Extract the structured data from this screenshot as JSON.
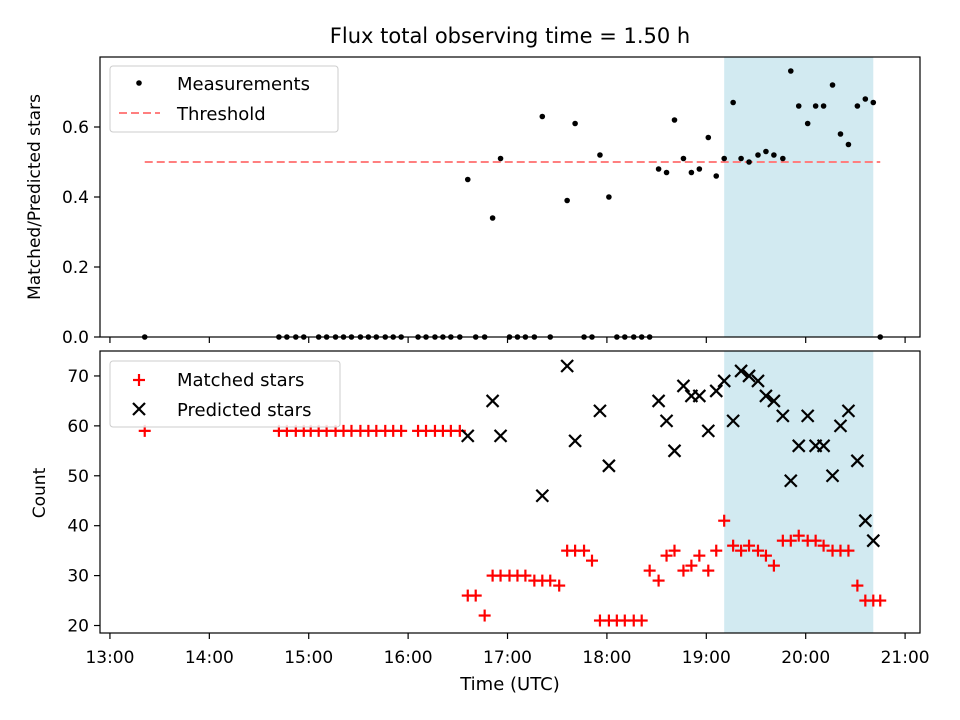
{
  "chart_data": [
    {
      "type": "scatter",
      "title": "Flux total observing time = 1.50 h",
      "xlabel": "",
      "ylabel": "Matched/Predicted stars",
      "x_unit": "hours UTC",
      "xlim": [
        12.9,
        21.15
      ],
      "ylim": [
        0,
        0.8
      ],
      "yticks": [
        0.0,
        0.2,
        0.4,
        0.6
      ],
      "ytick_labels": [
        "0.0",
        "0.2",
        "0.4",
        "0.6"
      ],
      "shaded_region": {
        "x": [
          19.18,
          20.68
        ],
        "color": "#add8e6"
      },
      "legend": {
        "placement": "upper-left",
        "entries": [
          "Measurements",
          "Threshold"
        ]
      },
      "threshold": {
        "name": "Threshold",
        "y": 0.5,
        "x": [
          13.35,
          20.75
        ],
        "color": "#ff7f7f",
        "style": "dashed"
      },
      "series": [
        {
          "name": "Measurements",
          "color": "#000000",
          "marker": "dot",
          "x": [
            13.35,
            14.7,
            14.78,
            14.87,
            14.95,
            15.1,
            15.18,
            15.27,
            15.35,
            15.43,
            15.52,
            15.6,
            15.68,
            15.77,
            15.85,
            15.93,
            16.1,
            16.18,
            16.27,
            16.35,
            16.43,
            16.52,
            16.6,
            16.68,
            16.77,
            16.85,
            16.93,
            17.02,
            17.1,
            17.18,
            17.27,
            17.35,
            17.43,
            17.6,
            17.68,
            17.77,
            17.85,
            17.93,
            18.02,
            18.1,
            18.18,
            18.27,
            18.35,
            18.43,
            18.52,
            18.6,
            18.68,
            18.77,
            18.85,
            18.93,
            19.02,
            19.1,
            19.18,
            19.27,
            19.35,
            19.43,
            19.52,
            19.6,
            19.68,
            19.77,
            19.85,
            19.93,
            20.02,
            20.1,
            20.18,
            20.27,
            20.35,
            20.43,
            20.52,
            20.6,
            20.68,
            20.75
          ],
          "y": [
            0,
            0,
            0,
            0,
            0,
            0,
            0,
            0,
            0,
            0,
            0,
            0,
            0,
            0,
            0,
            0,
            0,
            0,
            0,
            0,
            0,
            0,
            0.45,
            0,
            0,
            0.34,
            0.51,
            0,
            0,
            0,
            0,
            0.63,
            0,
            0.39,
            0.61,
            0,
            0,
            0.52,
            0.4,
            0,
            0,
            0,
            0,
            0,
            0.48,
            0.47,
            0.62,
            0.51,
            0.47,
            0.48,
            0.57,
            0.46,
            0.51,
            0.67,
            0.51,
            0.5,
            0.52,
            0.53,
            0.52,
            0.51,
            0.76,
            0.66,
            0.61,
            0.66,
            0.66,
            0.72,
            0.58,
            0.55,
            0.66,
            0.68,
            0.67,
            0
          ]
        }
      ]
    },
    {
      "type": "scatter",
      "title": "",
      "xlabel": "Time (UTC)",
      "ylabel": "Count",
      "x_unit": "hours UTC",
      "xlim": [
        12.9,
        21.15
      ],
      "ylim": [
        18.5,
        75
      ],
      "xticks": [
        13,
        14,
        15,
        16,
        17,
        18,
        19,
        20,
        21
      ],
      "xtick_labels": [
        "13:00",
        "14:00",
        "15:00",
        "16:00",
        "17:00",
        "18:00",
        "19:00",
        "20:00",
        "21:00"
      ],
      "yticks": [
        20,
        30,
        40,
        50,
        60,
        70
      ],
      "ytick_labels": [
        "20",
        "30",
        "40",
        "50",
        "60",
        "70"
      ],
      "shaded_region": {
        "x": [
          19.18,
          20.68
        ],
        "color": "#add8e6"
      },
      "legend": {
        "placement": "upper-left",
        "entries": [
          "Matched stars",
          "Predicted stars"
        ]
      },
      "series": [
        {
          "name": "Matched stars",
          "color": "#ff0000",
          "marker": "plus",
          "x": [
            13.35,
            14.7,
            14.78,
            14.87,
            14.95,
            15.02,
            15.1,
            15.18,
            15.27,
            15.35,
            15.43,
            15.52,
            15.6,
            15.68,
            15.77,
            15.85,
            15.93,
            16.1,
            16.18,
            16.27,
            16.35,
            16.43,
            16.52,
            16.6,
            16.68,
            16.77,
            16.85,
            16.93,
            17.02,
            17.1,
            17.18,
            17.27,
            17.35,
            17.43,
            17.52,
            17.6,
            17.68,
            17.77,
            17.85,
            17.93,
            18.02,
            18.1,
            18.18,
            18.27,
            18.35,
            18.43,
            18.52,
            18.6,
            18.68,
            18.77,
            18.85,
            18.93,
            19.02,
            19.1,
            19.18,
            19.27,
            19.35,
            19.43,
            19.52,
            19.6,
            19.68,
            19.77,
            19.85,
            19.93,
            20.02,
            20.1,
            20.18,
            20.27,
            20.35,
            20.43,
            20.52,
            20.6,
            20.68,
            20.75
          ],
          "y": [
            59,
            59,
            59,
            59,
            59,
            59,
            59,
            59,
            59,
            59,
            59,
            59,
            59,
            59,
            59,
            59,
            59,
            59,
            59,
            59,
            59,
            59,
            59,
            26,
            26,
            22,
            30,
            30,
            30,
            30,
            30,
            29,
            29,
            29,
            28,
            35,
            35,
            35,
            33,
            21,
            21,
            21,
            21,
            21,
            21,
            31,
            29,
            34,
            35,
            31,
            32,
            34,
            31,
            35,
            41,
            36,
            35,
            36,
            35,
            34,
            32,
            37,
            37,
            38,
            37,
            37,
            36,
            35,
            35,
            35,
            28,
            25,
            25,
            25
          ]
        },
        {
          "name": "Predicted stars",
          "color": "#000000",
          "marker": "x",
          "x": [
            16.6,
            16.85,
            16.93,
            17.35,
            17.6,
            17.68,
            17.93,
            18.02,
            18.52,
            18.6,
            18.68,
            18.77,
            18.85,
            18.93,
            19.02,
            19.1,
            19.18,
            19.27,
            19.35,
            19.43,
            19.52,
            19.6,
            19.68,
            19.77,
            19.85,
            19.93,
            20.02,
            20.1,
            20.18,
            20.27,
            20.35,
            20.43,
            20.52,
            20.6,
            20.68
          ],
          "y": [
            58,
            65,
            58,
            46,
            72,
            57,
            63,
            52,
            65,
            61,
            55,
            68,
            66,
            66,
            59,
            67,
            69,
            61,
            71,
            70,
            69,
            66,
            65,
            62,
            49,
            56,
            62,
            56,
            56,
            50,
            60,
            63,
            53,
            41,
            37
          ]
        }
      ]
    }
  ]
}
